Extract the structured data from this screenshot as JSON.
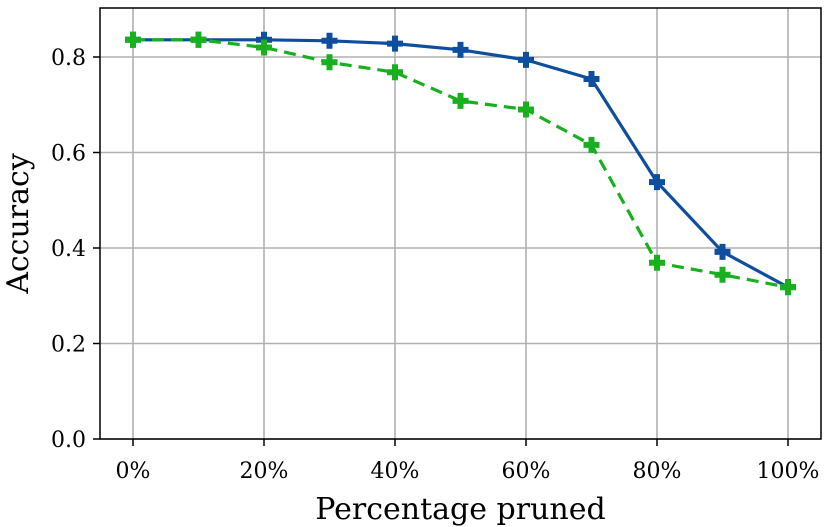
{
  "chart_data": {
    "type": "line",
    "xlabel": "Percentage pruned",
    "ylabel": "Accuracy",
    "x": [
      0,
      10,
      20,
      30,
      40,
      50,
      60,
      70,
      80,
      90,
      100
    ],
    "xticks": [
      0,
      20,
      40,
      60,
      80,
      100
    ],
    "xtick_labels": [
      "0%",
      "20%",
      "40%",
      "60%",
      "80%",
      "100%"
    ],
    "yticks": [
      0,
      0.2,
      0.4,
      0.6,
      0.8
    ],
    "ytick_labels": [
      "0.0",
      "0.2",
      "0.4",
      "0.6",
      "0.8"
    ],
    "xlim": [
      -5,
      105
    ],
    "ylim": [
      0,
      0.9
    ],
    "grid": true,
    "series": [
      {
        "color": "#0d4f9e",
        "line_style": "solid",
        "marker": "plus",
        "values": [
          0.836,
          0.836,
          0.836,
          0.834,
          0.828,
          0.815,
          0.794,
          0.754,
          0.538,
          0.392,
          0.318
        ]
      },
      {
        "color": "#18b01e",
        "line_style": "dashed",
        "marker": "plus",
        "values": [
          0.836,
          0.836,
          0.82,
          0.789,
          0.768,
          0.708,
          0.69,
          0.616,
          0.369,
          0.344,
          0.318
        ]
      }
    ]
  }
}
